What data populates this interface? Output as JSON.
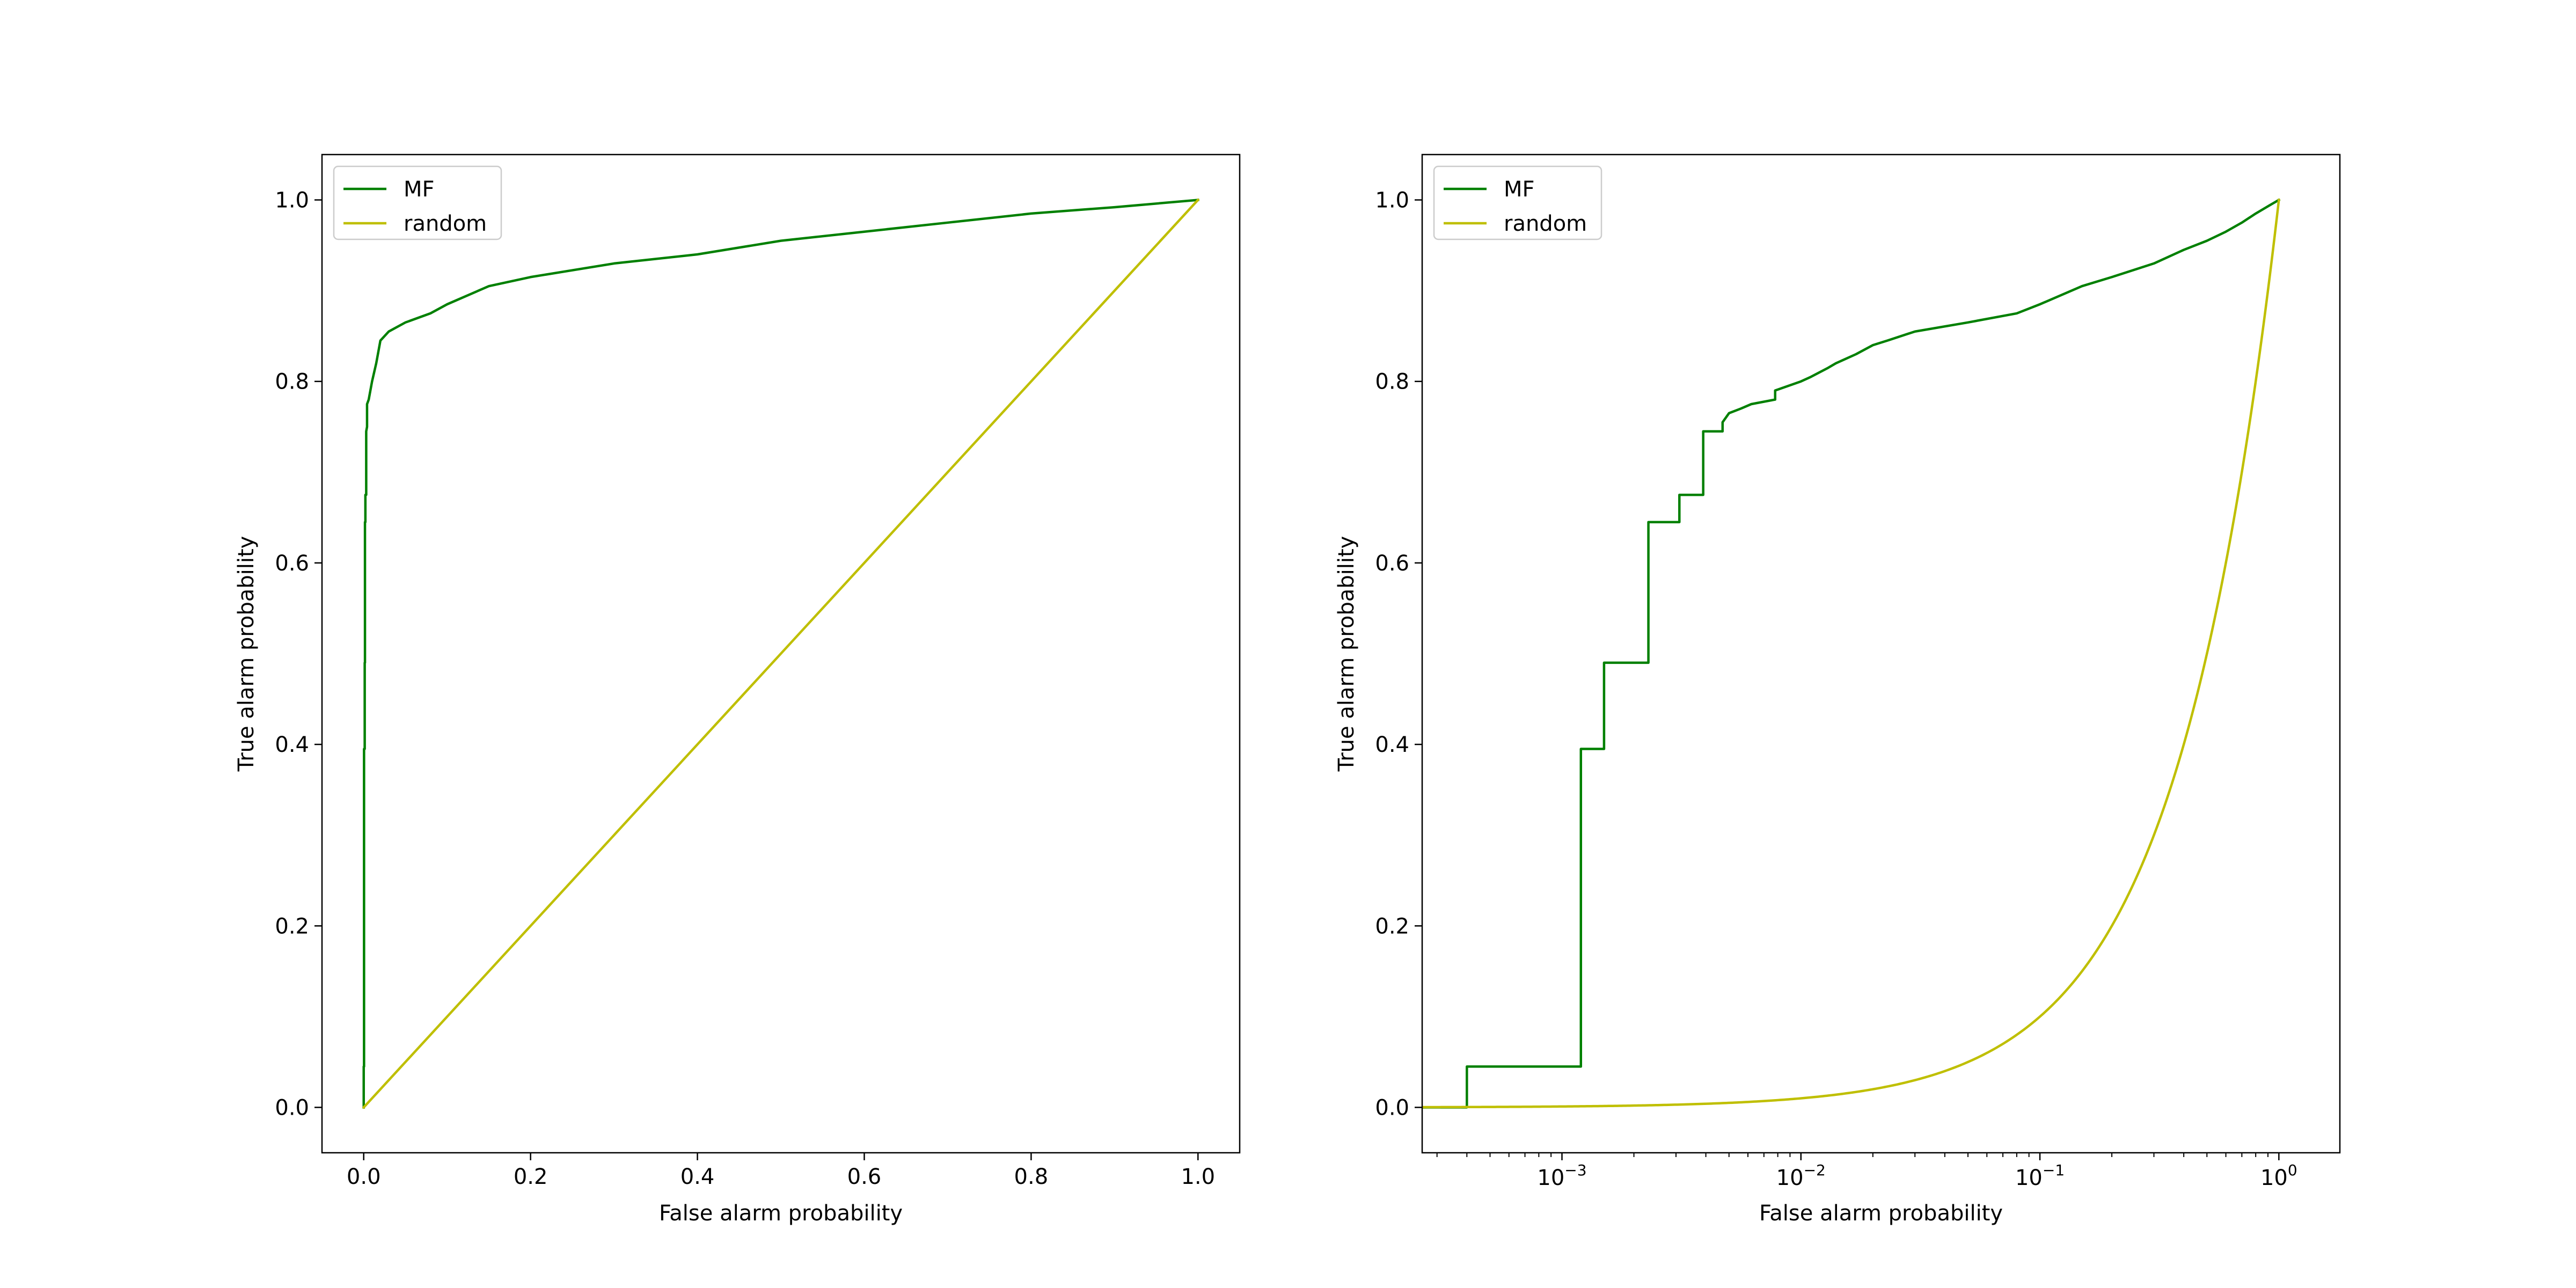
{
  "chart_data": [
    {
      "type": "line",
      "xlabel": "False alarm probability",
      "ylabel": "True alarm probability",
      "xscale": "linear",
      "xlim": [
        -0.05,
        1.05
      ],
      "ylim": [
        -0.05,
        1.05
      ],
      "xticks": [
        0.0,
        0.2,
        0.4,
        0.6,
        0.8,
        1.0
      ],
      "xtick_labels": [
        "0.0",
        "0.2",
        "0.4",
        "0.6",
        "0.8",
        "1.0"
      ],
      "yticks": [
        0.0,
        0.2,
        0.4,
        0.6,
        0.8,
        1.0
      ],
      "ytick_labels": [
        "0.0",
        "0.2",
        "0.4",
        "0.6",
        "0.8",
        "1.0"
      ],
      "legend_position": "top-left",
      "grid": false,
      "series": [
        {
          "name": "MF",
          "color": "#008000",
          "x": [
            0.0,
            0.0,
            0.0004,
            0.0004,
            0.0012,
            0.0012,
            0.0015,
            0.0015,
            0.002,
            0.002,
            0.003,
            0.003,
            0.004,
            0.004,
            0.006,
            0.01,
            0.015,
            0.02,
            0.03,
            0.05,
            0.08,
            0.1,
            0.15,
            0.2,
            0.3,
            0.4,
            0.5,
            0.6,
            0.7,
            0.8,
            0.9,
            1.0
          ],
          "y": [
            0.0,
            0.045,
            0.045,
            0.395,
            0.395,
            0.49,
            0.49,
            0.645,
            0.645,
            0.675,
            0.675,
            0.745,
            0.75,
            0.775,
            0.78,
            0.8,
            0.82,
            0.845,
            0.855,
            0.865,
            0.875,
            0.885,
            0.905,
            0.915,
            0.93,
            0.94,
            0.955,
            0.965,
            0.975,
            0.985,
            0.992,
            1.0
          ]
        },
        {
          "name": "random",
          "color": "#bfbf00",
          "x": [
            0.0,
            1.0
          ],
          "y": [
            0.0,
            1.0
          ]
        }
      ]
    },
    {
      "type": "line",
      "xlabel": "False alarm probability",
      "ylabel": "True alarm probability",
      "xscale": "log",
      "xlim": [
        0.00026,
        1.8
      ],
      "ylim": [
        -0.05,
        1.05
      ],
      "xticks": [
        0.001,
        0.01,
        0.1,
        1
      ],
      "xtick_labels": [
        {
          "base": "10",
          "exp": "−3"
        },
        {
          "base": "10",
          "exp": "−2"
        },
        {
          "base": "10",
          "exp": "−1"
        },
        {
          "base": "10",
          "exp": "0"
        }
      ],
      "yticks": [
        0.0,
        0.2,
        0.4,
        0.6,
        0.8,
        1.0
      ],
      "ytick_labels": [
        "0.0",
        "0.2",
        "0.4",
        "0.6",
        "0.8",
        "1.0"
      ],
      "legend_position": "top-left",
      "grid": false,
      "series": [
        {
          "name": "MF",
          "color": "#008000",
          "x": [
            0.00026,
            0.0004,
            0.0004,
            0.0012,
            0.0012,
            0.0015,
            0.0015,
            0.0023,
            0.0023,
            0.0031,
            0.0031,
            0.0039,
            0.0039,
            0.0047,
            0.0047,
            0.005,
            0.0056,
            0.0062,
            0.0078,
            0.0078,
            0.01,
            0.011,
            0.013,
            0.014,
            0.017,
            0.02,
            0.023,
            0.03,
            0.05,
            0.08,
            0.1,
            0.15,
            0.2,
            0.3,
            0.4,
            0.5,
            0.6,
            0.7,
            0.8,
            0.9,
            1.0
          ],
          "y": [
            0.0,
            0.0,
            0.045,
            0.045,
            0.395,
            0.395,
            0.49,
            0.49,
            0.645,
            0.645,
            0.675,
            0.675,
            0.745,
            0.745,
            0.755,
            0.765,
            0.77,
            0.775,
            0.78,
            0.79,
            0.8,
            0.805,
            0.815,
            0.82,
            0.83,
            0.84,
            0.845,
            0.855,
            0.865,
            0.875,
            0.885,
            0.905,
            0.915,
            0.93,
            0.945,
            0.955,
            0.965,
            0.975,
            0.985,
            0.993,
            1.0
          ]
        },
        {
          "name": "random",
          "color": "#bfbf00",
          "curve": "y = x",
          "x_start": 0.00026,
          "x_end": 1.0
        }
      ]
    }
  ]
}
